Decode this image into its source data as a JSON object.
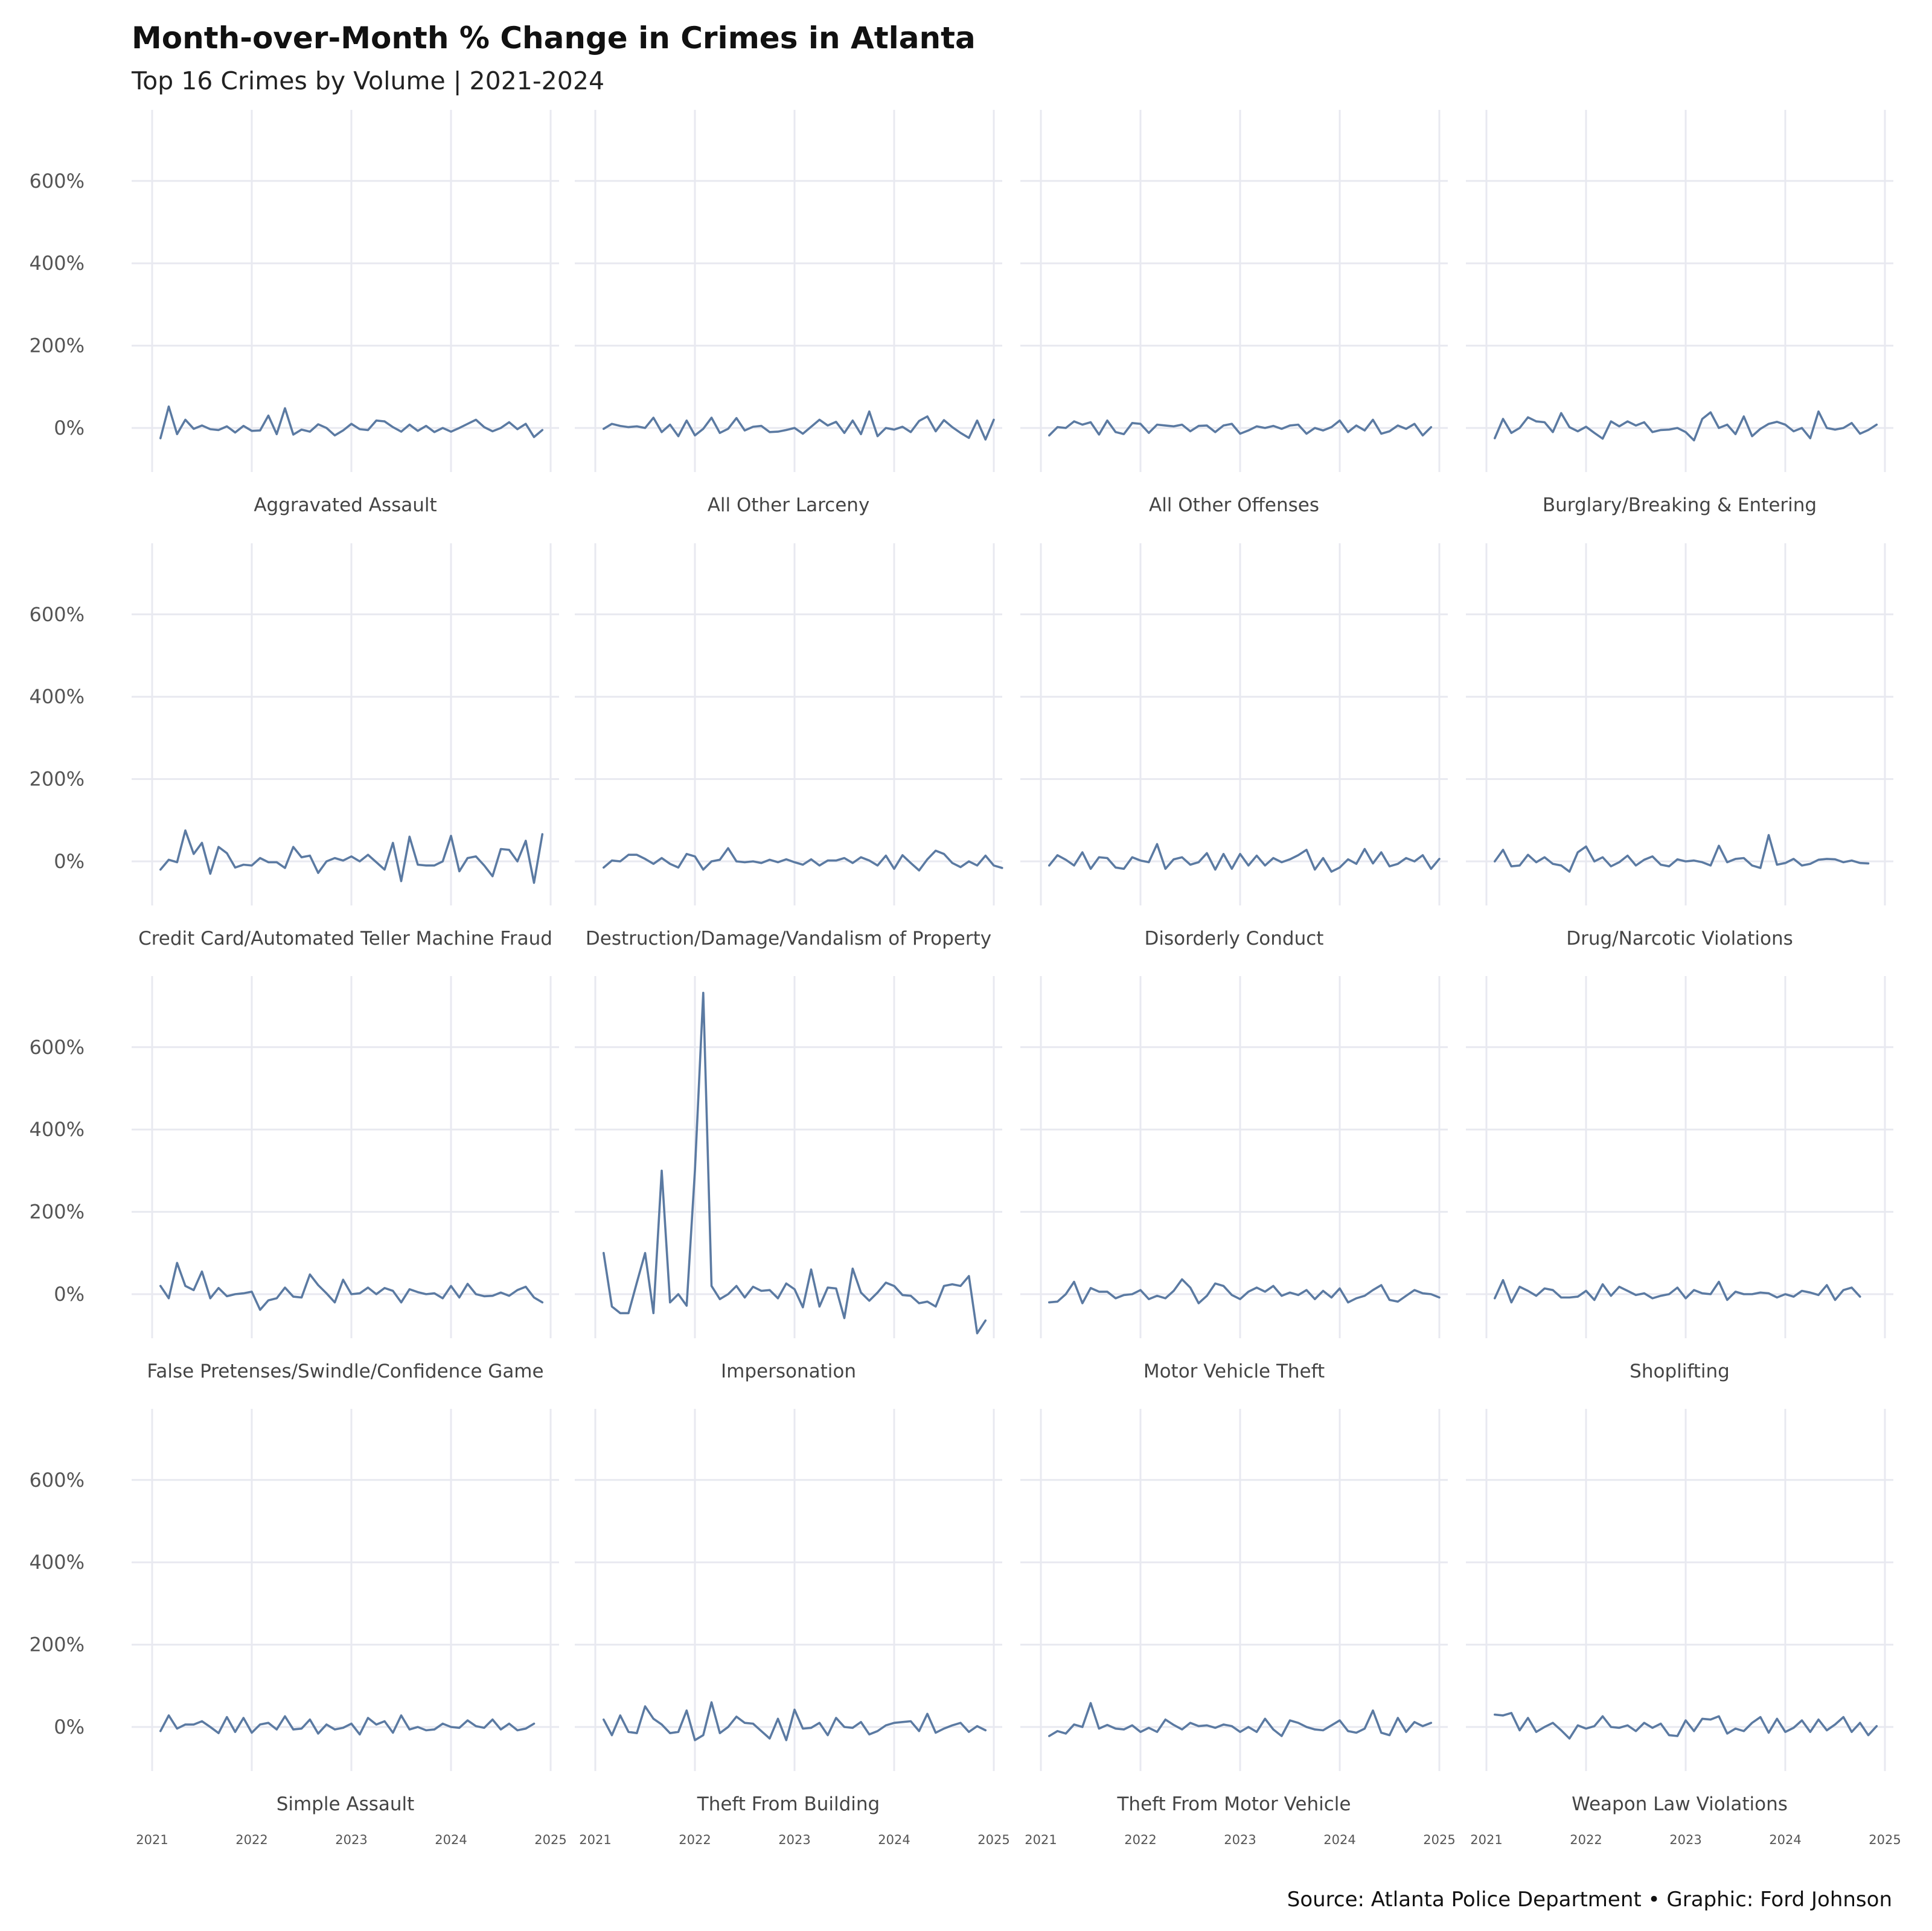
{
  "title": "Month-over-Month % Change in Crimes in Atlanta",
  "subtitle": "Top 16 Crimes by Volume | 2021-2024",
  "caption": "Source: Atlanta Police Department • Graphic: Ford Johnson",
  "colors": {
    "line": "#5b7aa2",
    "grid": "#e8e9f0"
  },
  "chart_data": {
    "type": "line",
    "layout": "small-multiples 4x4",
    "x_unit": "month",
    "x_start": "2021-02",
    "x_ticks": [
      "2021",
      "2022",
      "2023",
      "2024",
      "2025"
    ],
    "x_range": [
      "2021-01",
      "2025-01"
    ],
    "y_ticks": [
      0,
      200,
      400,
      600
    ],
    "y_tick_labels": [
      "0%",
      "200%",
      "400%",
      "600%"
    ],
    "ylim": [
      -130,
      770
    ],
    "grid": true,
    "legend": "none",
    "panels": [
      {
        "name": "Aggravated Assault",
        "values": [
          -25,
          52,
          -15,
          20,
          -2,
          6,
          -3,
          -5,
          4,
          -11,
          5,
          -7,
          -6,
          30,
          -15,
          48,
          -16,
          -4,
          -9,
          9,
          0,
          -18,
          -6,
          10,
          -3,
          -5,
          18,
          16,
          2,
          -9,
          8,
          -7,
          5,
          -10,
          0,
          -9,
          0,
          10,
          20,
          2,
          -8,
          0,
          14,
          -3,
          10,
          -22,
          -5
        ]
      },
      {
        "name": "All Other Larceny",
        "values": [
          -2,
          10,
          5,
          2,
          4,
          0,
          25,
          -10,
          8,
          -20,
          18,
          -18,
          -2,
          25,
          -12,
          -2,
          24,
          -6,
          3,
          5,
          -10,
          -9,
          -5,
          0,
          -14,
          3,
          20,
          6,
          15,
          -12,
          18,
          -15,
          40,
          -20,
          0,
          -4,
          3,
          -10,
          17,
          28,
          -8,
          19,
          2,
          -12,
          -24,
          18,
          -28,
          20
        ]
      },
      {
        "name": "All Other Offenses",
        "values": [
          -18,
          2,
          0,
          16,
          8,
          14,
          -16,
          18,
          -10,
          -15,
          12,
          10,
          -12,
          8,
          6,
          4,
          8,
          -8,
          5,
          6,
          -10,
          6,
          10,
          -14,
          -6,
          4,
          0,
          5,
          -2,
          6,
          8,
          -14,
          0,
          -6,
          2,
          18,
          -10,
          6,
          -6,
          20,
          -14,
          -8,
          6,
          -2,
          10,
          -18,
          2
        ]
      },
      {
        "name": "Burglary/Breaking & Entering",
        "values": [
          -25,
          22,
          -12,
          0,
          26,
          16,
          14,
          -10,
          36,
          2,
          -8,
          3,
          -12,
          -26,
          16,
          4,
          16,
          6,
          14,
          -10,
          -5,
          -4,
          0,
          -10,
          -30,
          22,
          38,
          0,
          8,
          -15,
          28,
          -20,
          -2,
          10,
          15,
          8,
          -8,
          0,
          -25,
          40,
          0,
          -4,
          0,
          12,
          -14,
          -5,
          8
        ]
      },
      {
        "name": "Credit Card/Automated Teller Machine Fraud",
        "values": [
          -20,
          4,
          -2,
          75,
          18,
          45,
          -30,
          35,
          20,
          -15,
          -8,
          -10,
          8,
          -2,
          -2,
          -16,
          35,
          10,
          14,
          -28,
          0,
          8,
          2,
          12,
          0,
          16,
          -2,
          -20,
          45,
          -48,
          60,
          -8,
          -10,
          -10,
          0,
          62,
          -24,
          8,
          12,
          -10,
          -36,
          30,
          28,
          0,
          50,
          -52,
          66
        ]
      },
      {
        "name": "Destruction/Damage/Vandalism of Property",
        "values": [
          -15,
          2,
          0,
          16,
          16,
          6,
          -6,
          8,
          -6,
          -15,
          18,
          12,
          -20,
          0,
          4,
          32,
          0,
          -2,
          0,
          -4,
          4,
          -2,
          5,
          -2,
          -8,
          5,
          -10,
          2,
          2,
          8,
          -4,
          10,
          2,
          -10,
          14,
          -18,
          15,
          -4,
          -22,
          5,
          26,
          18,
          -4,
          -14,
          0,
          -10,
          14,
          -10,
          -16
        ]
      },
      {
        "name": "Disorderly Conduct",
        "values": [
          -10,
          15,
          4,
          -10,
          22,
          -18,
          10,
          8,
          -15,
          -18,
          10,
          2,
          -2,
          42,
          -18,
          5,
          10,
          -8,
          -2,
          20,
          -20,
          18,
          -18,
          18,
          -10,
          14,
          -10,
          8,
          -2,
          5,
          15,
          28,
          -20,
          8,
          -25,
          -15,
          5,
          -6,
          30,
          -5,
          22,
          -12,
          -6,
          8,
          0,
          15,
          -18,
          6
        ]
      },
      {
        "name": "Drug/Narcotic Violations",
        "values": [
          0,
          28,
          -12,
          -10,
          16,
          -2,
          10,
          -6,
          -10,
          -25,
          22,
          36,
          0,
          10,
          -12,
          -2,
          14,
          -10,
          4,
          12,
          -8,
          -12,
          5,
          0,
          2,
          -2,
          -10,
          38,
          -2,
          6,
          8,
          -10,
          -16,
          64,
          -8,
          -4,
          6,
          -10,
          -6,
          4,
          6,
          5,
          -2,
          2,
          -4,
          -5
        ]
      },
      {
        "name": "False Pretenses/Swindle/Confidence Game",
        "values": [
          20,
          -10,
          76,
          20,
          10,
          55,
          -10,
          15,
          -5,
          0,
          2,
          6,
          -38,
          -15,
          -10,
          16,
          -6,
          -8,
          48,
          22,
          2,
          -20,
          35,
          0,
          2,
          16,
          0,
          15,
          8,
          -20,
          12,
          5,
          0,
          2,
          -10,
          20,
          -8,
          25,
          0,
          -5,
          -4,
          4,
          -4,
          10,
          18,
          -8,
          -20
        ]
      },
      {
        "name": "Impersonation",
        "values": [
          100,
          -30,
          -46,
          -46,
          28,
          100,
          -46,
          300,
          -20,
          0,
          -28,
          300,
          732,
          20,
          -12,
          0,
          20,
          -8,
          18,
          8,
          10,
          -10,
          26,
          12,
          -32,
          60,
          -30,
          16,
          14,
          -58,
          62,
          4,
          -16,
          4,
          28,
          20,
          -2,
          -4,
          -22,
          -18,
          -30,
          20,
          24,
          20,
          44,
          -95,
          -64
        ]
      },
      {
        "name": "Motor Vehicle Theft",
        "values": [
          -20,
          -18,
          0,
          30,
          -22,
          15,
          6,
          6,
          -10,
          -2,
          0,
          10,
          -12,
          -4,
          -10,
          8,
          36,
          16,
          -22,
          -4,
          26,
          20,
          -2,
          -12,
          6,
          16,
          6,
          20,
          -4,
          4,
          -2,
          10,
          -12,
          8,
          -8,
          14,
          -20,
          -10,
          -4,
          10,
          22,
          -14,
          -18,
          -4,
          10,
          2,
          0,
          -8
        ]
      },
      {
        "name": "Shoplifting",
        "values": [
          -10,
          34,
          -20,
          18,
          8,
          -4,
          14,
          10,
          -8,
          -8,
          -6,
          8,
          -14,
          24,
          -4,
          18,
          8,
          -2,
          2,
          -10,
          -4,
          0,
          16,
          -10,
          10,
          2,
          0,
          30,
          -14,
          6,
          0,
          0,
          4,
          2,
          -8,
          0,
          -6,
          8,
          4,
          -2,
          22,
          -14,
          10,
          16,
          -6
        ]
      },
      {
        "name": "Simple Assault",
        "values": [
          -10,
          28,
          -4,
          6,
          6,
          14,
          0,
          -15,
          24,
          -12,
          22,
          -14,
          6,
          10,
          -6,
          26,
          -6,
          -4,
          18,
          -16,
          6,
          -6,
          -2,
          8,
          -18,
          22,
          6,
          14,
          -14,
          28,
          -6,
          0,
          -8,
          -6,
          8,
          0,
          -2,
          16,
          2,
          -2,
          18,
          -6,
          8,
          -8,
          -4,
          8
        ]
      },
      {
        "name": "Theft From Building",
        "values": [
          18,
          -20,
          28,
          -12,
          -15,
          50,
          20,
          6,
          -15,
          -12,
          40,
          -32,
          -20,
          60,
          -15,
          0,
          25,
          10,
          8,
          -10,
          -28,
          20,
          -32,
          42,
          -4,
          -2,
          10,
          -20,
          22,
          0,
          -2,
          12,
          -18,
          -10,
          4,
          10,
          12,
          14,
          -10,
          32,
          -14,
          -4,
          4,
          10,
          -12,
          2,
          -8
        ]
      },
      {
        "name": "Theft From Motor Vehicle",
        "values": [
          -22,
          -10,
          -16,
          6,
          0,
          58,
          -4,
          5,
          -4,
          -6,
          4,
          -12,
          -2,
          -12,
          18,
          5,
          -6,
          10,
          2,
          4,
          -2,
          6,
          2,
          -12,
          0,
          -12,
          20,
          -6,
          -22,
          16,
          10,
          0,
          -6,
          -8,
          4,
          16,
          -10,
          -14,
          -4,
          40,
          -14,
          -20,
          22,
          -12,
          12,
          2,
          10
        ]
      },
      {
        "name": "Weapon Law Violations",
        "values": [
          30,
          28,
          34,
          -8,
          22,
          -12,
          0,
          10,
          -8,
          -28,
          4,
          -4,
          2,
          26,
          0,
          -2,
          4,
          -10,
          10,
          -2,
          8,
          -20,
          -22,
          16,
          -10,
          20,
          18,
          26,
          -16,
          -4,
          -10,
          10,
          24,
          -14,
          20,
          -12,
          -2,
          16,
          -12,
          18,
          -8,
          6,
          24,
          -12,
          10,
          -20,
          2
        ]
      }
    ]
  }
}
